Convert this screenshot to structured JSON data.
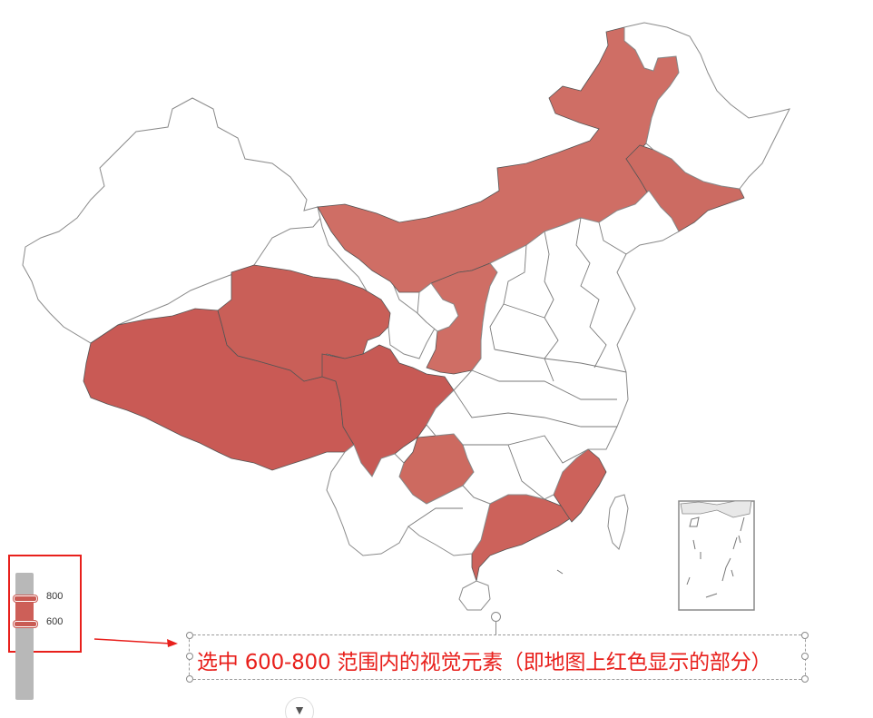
{
  "visual_map": {
    "type": "continuous",
    "selected_range": [
      600,
      800
    ],
    "label_high": "800",
    "label_low": "600",
    "selected_color": "#cd5f58",
    "track_color": "#b8b8b8"
  },
  "map": {
    "highlighted_color": "#cd6a60",
    "border_color": "#8a8a8a",
    "highlighted_regions": [
      "内蒙古",
      "黑龙江",
      "吉林",
      "西藏",
      "青海",
      "四川",
      "陕西",
      "贵州",
      "广东",
      "福建"
    ]
  },
  "annotation": {
    "text": "选中 600-800 范围内的视觉元素（即地图上红色显示的部分）",
    "color": "#e8201c"
  },
  "icons": {
    "expand": "chevron-down-icon",
    "arrow": "red-arrow-icon",
    "rotate": "rotate-handle-icon"
  }
}
